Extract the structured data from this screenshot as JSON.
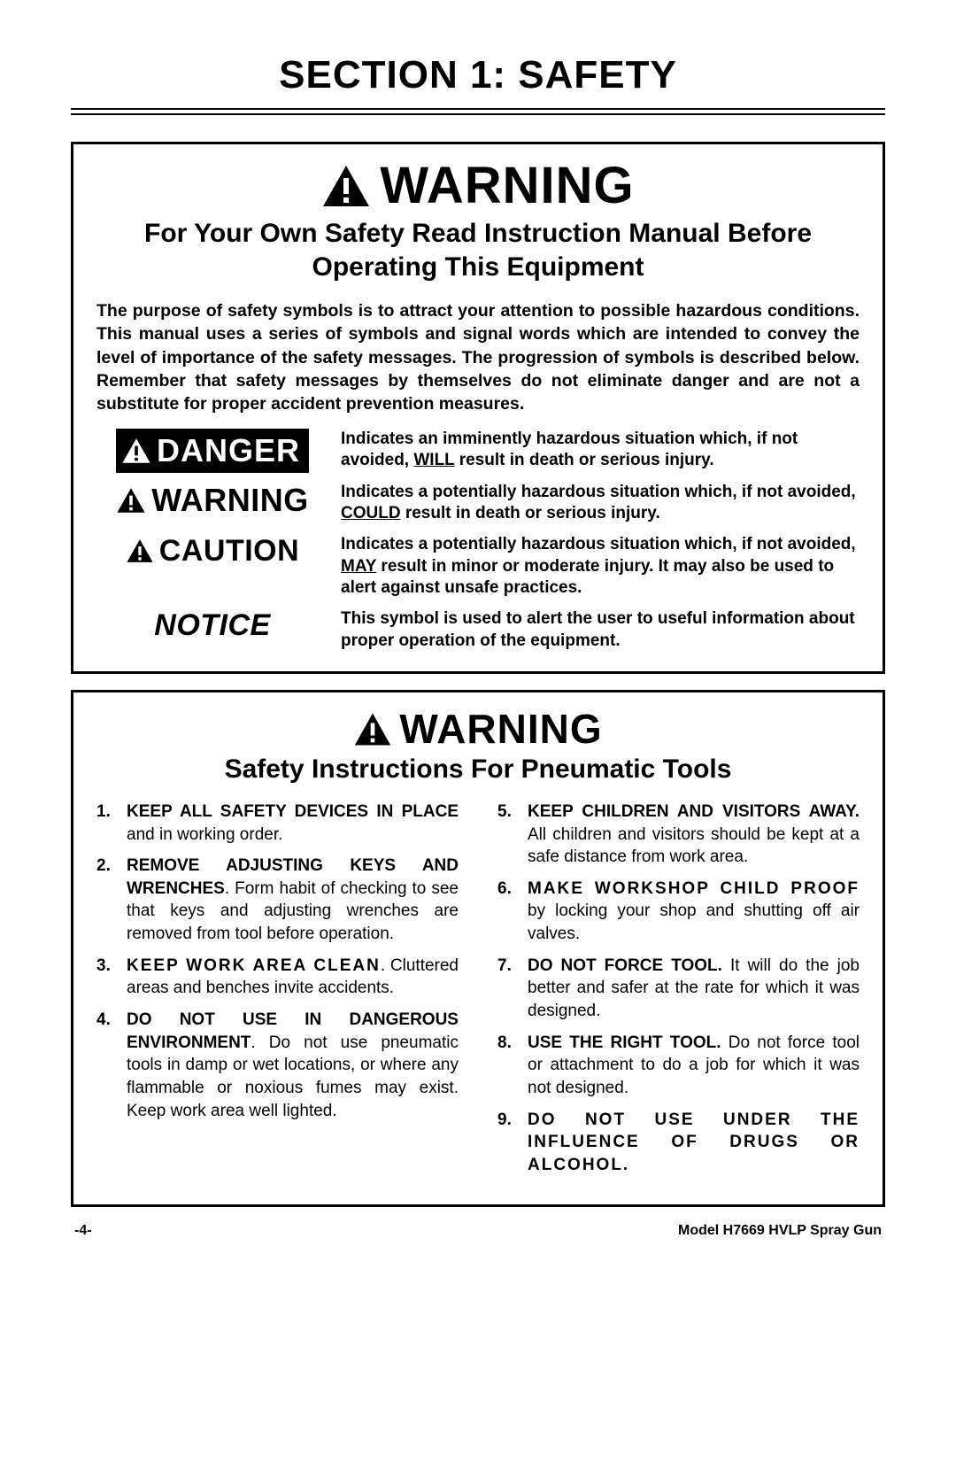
{
  "section_title": "SECTION 1: SAFETY",
  "box1": {
    "warning_word": "WARNING",
    "sub_heading": "For Your Own Safety Read Instruction Manual Before Operating This Equipment",
    "intro": "The purpose of safety symbols is to attract your attention to possible hazardous conditions. This manual uses a series of symbols and signal words which are intended to convey the level of importance of the safety messages. The progression of symbols is described below. Remember that safety messages by themselves do not eliminate danger and are not a substitute for proper accident prevention measures.",
    "rows": {
      "danger": {
        "label": "DANGER",
        "desc_a": "Indicates an imminently hazardous situation which, if not avoided, ",
        "desc_key": "WILL",
        "desc_b": " result in death or serious injury."
      },
      "warning": {
        "label": "WARNING",
        "desc_a": "Indicates a potentially hazardous situation which, if not avoided, ",
        "desc_key": "COULD",
        "desc_b": " result in death or serious injury."
      },
      "caution": {
        "label": "CAUTION",
        "desc_a": "Indicates a potentially hazardous situation which, if not avoided, ",
        "desc_key": "MAY",
        "desc_b": " result in minor or moderate injury. It may also be used to alert against unsafe practices."
      },
      "notice": {
        "label": "NOTICE",
        "desc": "This symbol is used to alert the user to useful information about proper operation of the equipment."
      }
    }
  },
  "box2": {
    "warning_word": "WARNING",
    "sub_heading": "Safety Instructions For Pneumatic Tools",
    "left": [
      {
        "bold": "KEEP ALL SAFETY DEVICES IN PLACE",
        "rest": " and in working order."
      },
      {
        "bold": "REMOVE ADJUSTING KEYS AND WRENCHES",
        "rest": ". Form habit of checking to see that keys and adjusting wrenches are removed from tool before operation."
      },
      {
        "bold": "KEEP WORK AREA CLEAN",
        "rest": ". Cluttered areas and benches invite accidents.",
        "ls": true
      },
      {
        "bold": "DO NOT USE IN DANGEROUS ENVIRONMENT",
        "rest": ". Do not use pneumatic tools in damp or wet locations, or where any flammable or noxious fumes may exist. Keep work area well lighted."
      }
    ],
    "right": [
      {
        "bold": "KEEP CHILDREN AND VISITORS AWAY.",
        "rest": " All children and visitors should be kept at a safe distance from work area."
      },
      {
        "bold": "MAKE WORKSHOP CHILD PROOF",
        "rest": " by locking your shop and shutting off air valves.",
        "ls": true
      },
      {
        "bold": "DO NOT FORCE TOOL.",
        "rest": " It will do the job better and safer at the rate for which it was designed."
      },
      {
        "bold": "USE THE RIGHT TOOL.",
        "rest": " Do not force tool or attachment to do a job for which it was not designed."
      },
      {
        "bold": "DO NOT USE UNDER THE INFLUENCE OF DRUGS OR ALCOHOL.",
        "rest": "",
        "ls": true
      }
    ]
  },
  "footer": {
    "page": "-4-",
    "model": "Model H7669 HVLP Spray Gun"
  }
}
